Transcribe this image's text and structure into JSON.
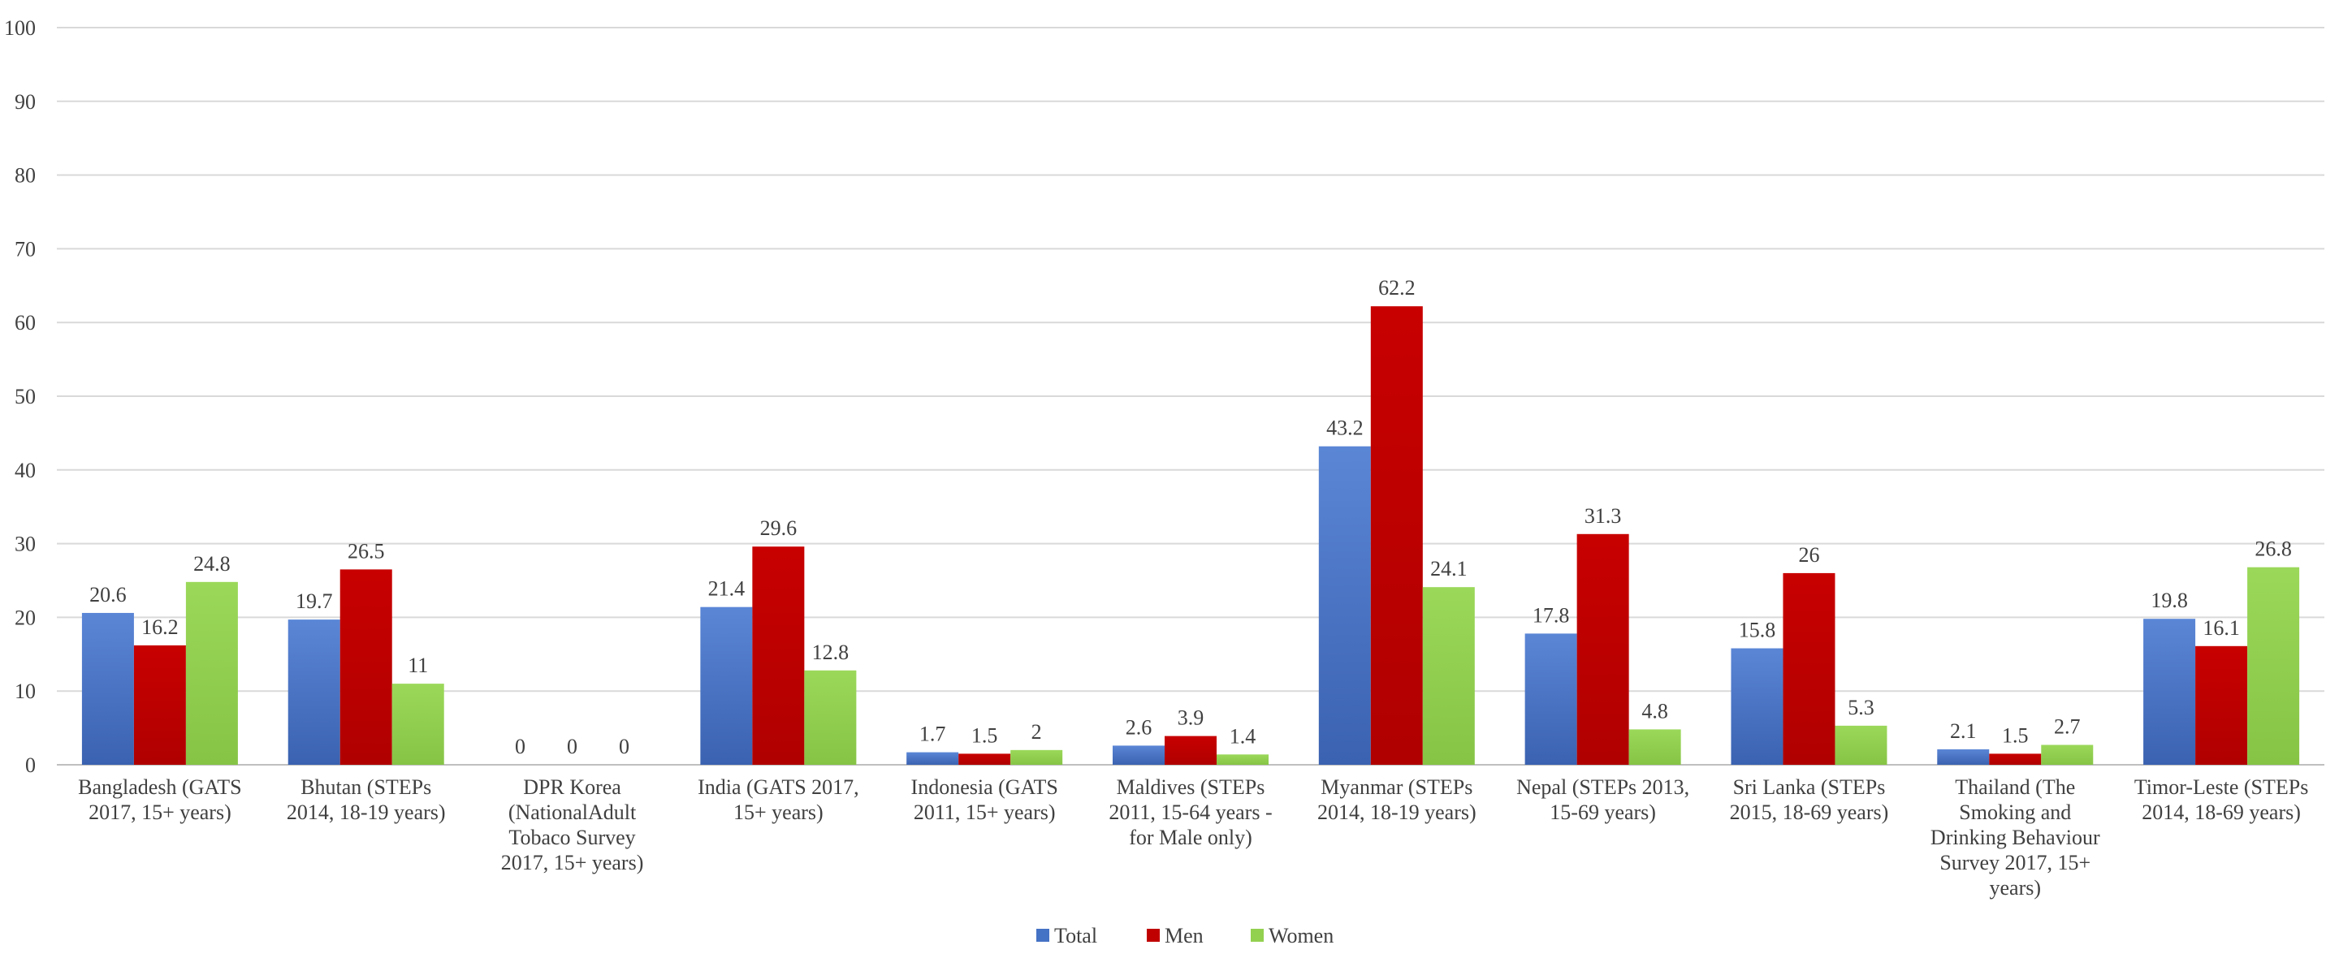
{
  "chart_data": {
    "type": "bar",
    "title": "",
    "xlabel": "",
    "ylabel": "",
    "ylim": [
      0,
      100
    ],
    "yticks": [
      0,
      10,
      20,
      30,
      40,
      50,
      60,
      70,
      80,
      90,
      100
    ],
    "grid": true,
    "legend_position": "bottom",
    "categories": [
      [
        "Bangladesh (GATS",
        "2017, 15+ years)"
      ],
      [
        "Bhutan (STEPs",
        "2014, 18-19 years)"
      ],
      [
        "DPR Korea",
        "(NationalAdult",
        "Tobaco Survey",
        "2017, 15+ years)"
      ],
      [
        "India (GATS 2017,",
        "15+ years)"
      ],
      [
        "Indonesia (GATS",
        "2011, 15+ years)"
      ],
      [
        "Maldives (STEPs",
        "2011, 15-64 years -",
        "for Male only)"
      ],
      [
        "Myanmar (STEPs",
        "2014, 18-19 years)"
      ],
      [
        "Nepal (STEPs 2013,",
        "15-69 years)"
      ],
      [
        "Sri Lanka (STEPs",
        "2015, 18-69 years)"
      ],
      [
        "Thailand (The",
        "Smoking and",
        "Drinking Behaviour",
        "Survey 2017, 15+",
        "years)"
      ],
      [
        "Timor-Leste (STEPs",
        "2014, 18-69 years)"
      ]
    ],
    "series": [
      {
        "name": "Total",
        "color": "#4472c4",
        "values": [
          20.6,
          19.7,
          0,
          21.4,
          1.7,
          2.6,
          43.2,
          17.8,
          15.8,
          2.1,
          19.8
        ]
      },
      {
        "name": "Men",
        "color": "#c00000",
        "values": [
          16.2,
          26.5,
          0,
          29.6,
          1.5,
          3.9,
          62.2,
          31.3,
          26,
          1.5,
          16.1
        ]
      },
      {
        "name": "Women",
        "color": "#92d050",
        "values": [
          24.8,
          11,
          0,
          12.8,
          2,
          1.4,
          24.1,
          4.8,
          5.3,
          2.7,
          26.8
        ]
      }
    ]
  }
}
